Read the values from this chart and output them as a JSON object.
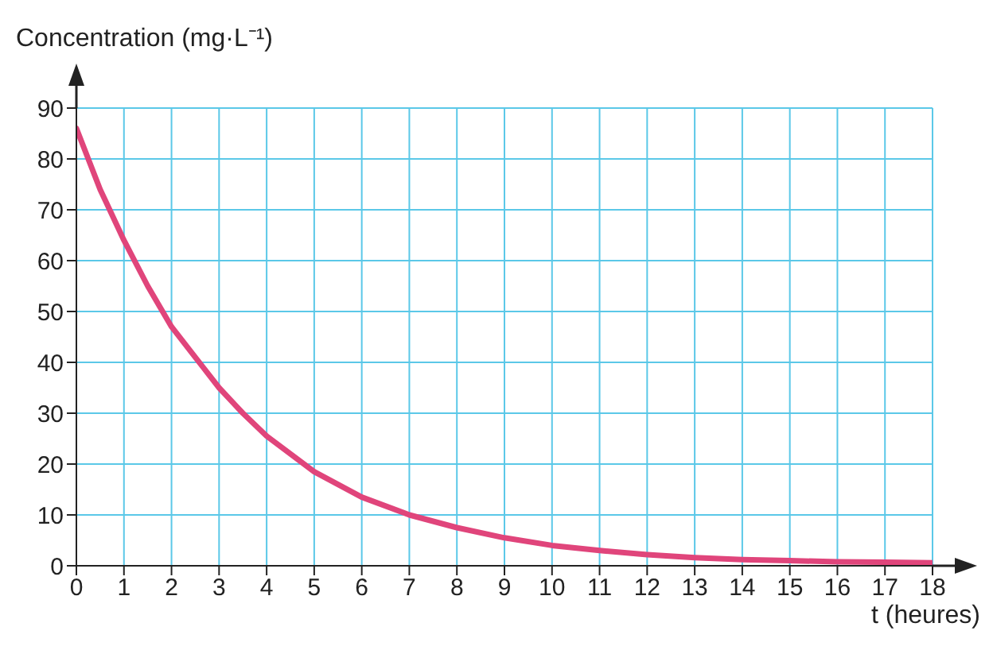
{
  "chart_data": {
    "type": "line",
    "ylabel": "Concentration (mg·L⁻¹)",
    "xlabel": "t (heures)",
    "x": [
      0,
      0.5,
      1,
      1.5,
      2,
      2.5,
      3,
      3.5,
      4,
      5,
      6,
      7,
      8,
      9,
      10,
      11,
      12,
      13,
      14,
      15,
      16,
      17,
      18
    ],
    "series": [
      {
        "color": "#e0457b",
        "values": [
          86,
          74,
          64,
          55,
          47,
          41,
          35,
          30,
          25.5,
          18.5,
          13.5,
          10,
          7.5,
          5.5,
          4,
          3,
          2.2,
          1.6,
          1.2,
          1,
          0.8,
          0.7,
          0.6
        ]
      }
    ],
    "xlim": [
      0,
      18
    ],
    "xticks": [
      0,
      1,
      2,
      3,
      4,
      5,
      6,
      7,
      8,
      9,
      10,
      11,
      12,
      13,
      14,
      15,
      16,
      17,
      18
    ],
    "ylim": [
      0,
      90
    ],
    "yticks": [
      0,
      10,
      20,
      30,
      40,
      50,
      60,
      70,
      80,
      90
    ],
    "grid": true,
    "marker": "none",
    "line_style": "solid"
  }
}
